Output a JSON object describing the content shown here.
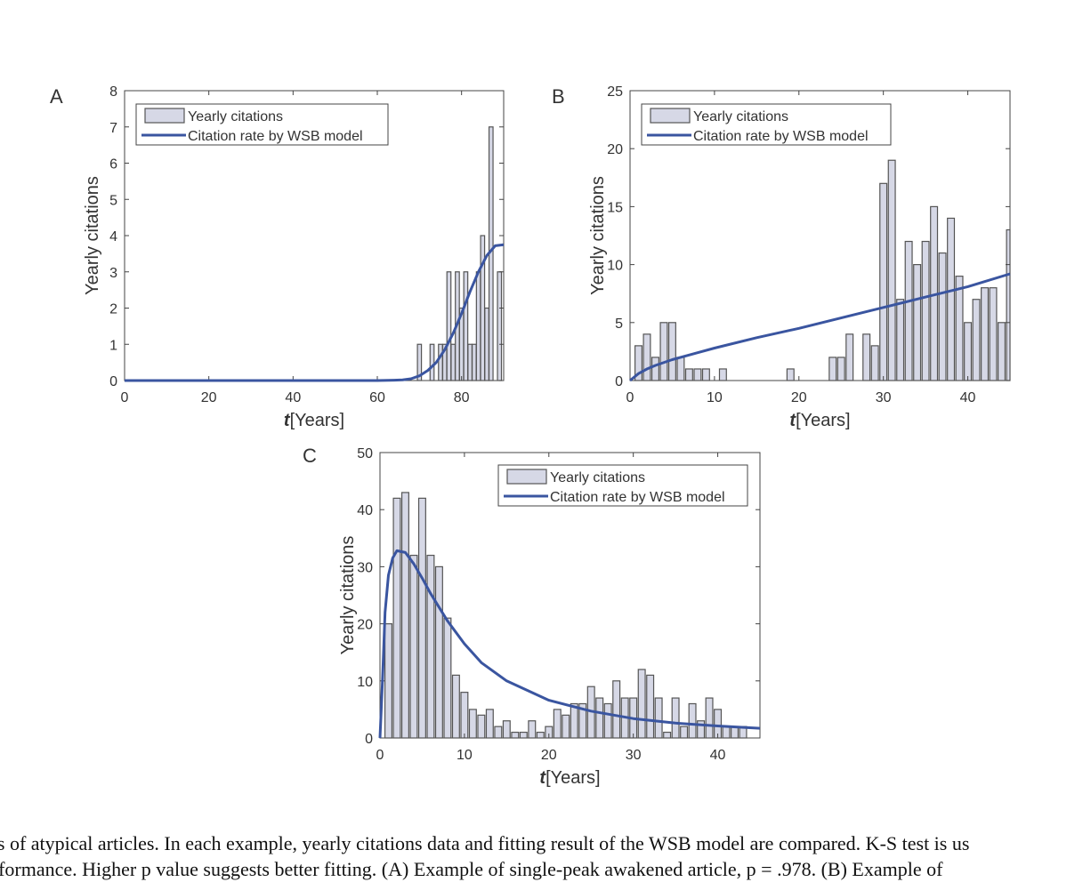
{
  "colors": {
    "bar_fill": "#d6d8e6",
    "bar_stroke": "#555555",
    "curve": "#3a55a0",
    "axis": "#444444"
  },
  "legend": {
    "bar_label": "Yearly citations",
    "line_label": "Citation rate by WSB model"
  },
  "caption": {
    "line1": "ples of atypical articles. In each example, yearly citations data and fitting result of the WSB model are compared. K-S test is us",
    "line2": "performance. Higher p value suggests better fitting. (A) Example of single-peak awakened article, p = .978. (B) Example of"
  },
  "chart_data": [
    {
      "type": "bar",
      "panel_label": "A",
      "xlabel_italic": "t",
      "xlabel": "[Years]",
      "ylabel": "Yearly citations",
      "xlim": [
        0,
        90
      ],
      "ylim": [
        0,
        8
      ],
      "xticks": [
        0,
        20,
        40,
        60,
        80
      ],
      "yticks": [
        0,
        1,
        2,
        3,
        4,
        5,
        6,
        7,
        8
      ],
      "legend_position": "top-left",
      "bars": {
        "x": [
          70,
          73,
          75,
          76,
          77,
          78,
          79,
          80,
          81,
          82,
          83,
          84,
          85,
          86,
          87,
          88,
          89
        ],
        "values": [
          1,
          1,
          1,
          1,
          3,
          1,
          3,
          2,
          3,
          1,
          1,
          3,
          4,
          2,
          7,
          0,
          3
        ]
      },
      "curve": {
        "x": [
          0,
          60,
          64,
          66,
          68,
          70,
          72,
          74,
          76,
          78,
          80,
          82,
          84,
          86,
          88,
          90
        ],
        "values": [
          0,
          0,
          0.01,
          0.02,
          0.05,
          0.13,
          0.28,
          0.5,
          0.85,
          1.3,
          1.85,
          2.45,
          3.0,
          3.45,
          3.72,
          3.75
        ]
      }
    },
    {
      "type": "bar",
      "panel_label": "B",
      "xlabel_italic": "t",
      "xlabel": "[Years]",
      "ylabel": "Yearly citations",
      "xlim": [
        0,
        45
      ],
      "ylim": [
        0,
        25
      ],
      "xticks": [
        0,
        10,
        20,
        30,
        40
      ],
      "yticks": [
        0,
        5,
        10,
        15,
        20,
        25
      ],
      "legend_position": "top-left",
      "bars": {
        "x": [
          1,
          2,
          3,
          4,
          5,
          6,
          7,
          8,
          9,
          11,
          19,
          24,
          25,
          26,
          28,
          29,
          30,
          31,
          32,
          33,
          34,
          35,
          36,
          37,
          38,
          39,
          40,
          41,
          42,
          43,
          44,
          45
        ],
        "values": [
          3,
          4,
          2,
          5,
          5,
          2,
          1,
          1,
          1,
          1,
          1,
          2,
          2,
          4,
          4,
          3,
          17,
          19,
          7,
          12,
          10,
          12,
          15,
          11,
          14,
          9,
          5,
          7,
          8,
          8,
          5,
          13
        ]
      },
      "curve": {
        "x": [
          0,
          0.5,
          1,
          2,
          3,
          5,
          8,
          10,
          15,
          20,
          25,
          30,
          35,
          40,
          45
        ],
        "values": [
          0,
          0.3,
          0.6,
          1.0,
          1.3,
          1.8,
          2.4,
          2.8,
          3.7,
          4.5,
          5.4,
          6.3,
          7.2,
          8.1,
          9.2
        ]
      }
    },
    {
      "type": "bar",
      "panel_label": "C",
      "xlabel_italic": "t",
      "xlabel": "[Years]",
      "ylabel": "Yearly citations",
      "xlim": [
        0,
        45
      ],
      "ylim": [
        0,
        50
      ],
      "xticks": [
        0,
        10,
        20,
        30,
        40
      ],
      "yticks": [
        0,
        10,
        20,
        30,
        40,
        50
      ],
      "legend_position": "top-right",
      "bars": {
        "x": [
          1,
          2,
          3,
          4,
          5,
          6,
          7,
          8,
          9,
          10,
          11,
          12,
          13,
          14,
          15,
          16,
          17,
          18,
          19,
          20,
          21,
          22,
          23,
          24,
          25,
          26,
          27,
          28,
          29,
          30,
          31,
          32,
          33,
          34,
          35,
          36,
          37,
          38,
          39,
          40,
          41,
          42,
          43
        ],
        "values": [
          20,
          42,
          43,
          32,
          42,
          32,
          30,
          21,
          11,
          8,
          5,
          4,
          5,
          2,
          3,
          1,
          1,
          3,
          1,
          2,
          5,
          4,
          6,
          6,
          9,
          7,
          6,
          10,
          7,
          7,
          12,
          11,
          7,
          1,
          7,
          2,
          6,
          3,
          7,
          5,
          2,
          2,
          2
        ]
      },
      "curve": {
        "x": [
          0,
          0.3,
          0.6,
          1,
          1.5,
          2,
          3,
          4,
          5,
          6,
          8,
          10,
          12,
          15,
          20,
          25,
          30,
          35,
          40,
          45
        ],
        "values": [
          0,
          10,
          22,
          28.5,
          31.5,
          32.8,
          32.5,
          30.5,
          28,
          25.3,
          20.5,
          16.5,
          13.2,
          10,
          6.6,
          4.7,
          3.4,
          2.6,
          2.1,
          1.7
        ]
      }
    }
  ]
}
